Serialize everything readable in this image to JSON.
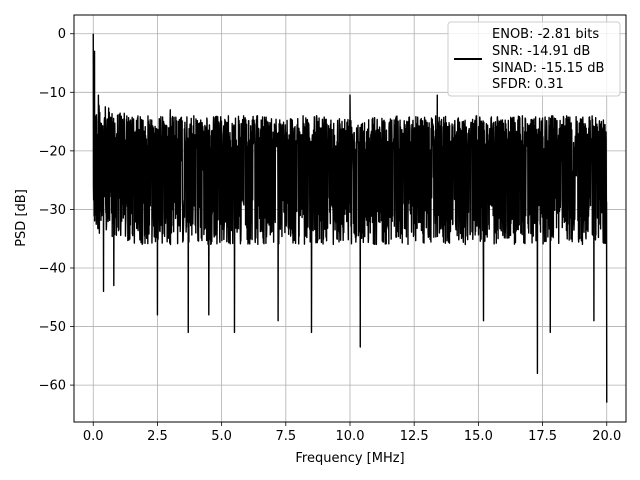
{
  "chart_data": {
    "type": "line",
    "xlabel": "Frequency [MHz]",
    "ylabel": "PSD [dB]",
    "xlim": [
      -0.75,
      20.75
    ],
    "ylim": [
      -66.3,
      3.2
    ],
    "x_ticks": [
      0,
      2.5,
      5,
      7.5,
      10,
      12.5,
      15,
      17.5,
      20
    ],
    "x_tick_labels": [
      "0.0",
      "2.5",
      "5.0",
      "7.5",
      "10.0",
      "12.5",
      "15.0",
      "17.5",
      "20.0"
    ],
    "y_ticks": [
      0,
      -10,
      -20,
      -30,
      -40,
      -50,
      -60
    ],
    "y_tick_labels": [
      "0",
      "−10",
      "−20",
      "−30",
      "−40",
      "−50",
      "−60"
    ],
    "grid": true,
    "legend_position": "top-right",
    "legend": {
      "line_color": "#000000",
      "entries": [
        "ENOB: -2.81 bits",
        "SNR: -14.91 dB",
        "SINAD: -15.15 dB",
        "SFDR: 0.31"
      ]
    },
    "series": [
      {
        "color": "#000000",
        "x_range": [
          0,
          20
        ],
        "noise_band_db": [
          -36,
          -14
        ],
        "peak_db": 0,
        "peaks": [
          {
            "x": 0.0,
            "y": 0
          },
          {
            "x": 0.05,
            "y": -3
          },
          {
            "x": 0.1,
            "y": -6
          },
          {
            "x": 0.2,
            "y": -10.5
          },
          {
            "x": 10.0,
            "y": -10.5
          },
          {
            "x": 13.4,
            "y": -10.5
          },
          {
            "x": 3.0,
            "y": -13
          },
          {
            "x": 8.7,
            "y": -14
          }
        ],
        "dips": [
          {
            "x": 0.1,
            "y": -22
          },
          {
            "x": 0.4,
            "y": -44
          },
          {
            "x": 0.8,
            "y": -43
          },
          {
            "x": 2.5,
            "y": -48
          },
          {
            "x": 3.7,
            "y": -51
          },
          {
            "x": 4.5,
            "y": -48
          },
          {
            "x": 5.5,
            "y": -51
          },
          {
            "x": 7.2,
            "y": -49
          },
          {
            "x": 8.5,
            "y": -51
          },
          {
            "x": 10.4,
            "y": -53.5
          },
          {
            "x": 15.2,
            "y": -49
          },
          {
            "x": 17.3,
            "y": -58
          },
          {
            "x": 17.8,
            "y": -51
          },
          {
            "x": 19.5,
            "y": -49
          },
          {
            "x": 20.0,
            "y": -63
          }
        ]
      }
    ]
  }
}
